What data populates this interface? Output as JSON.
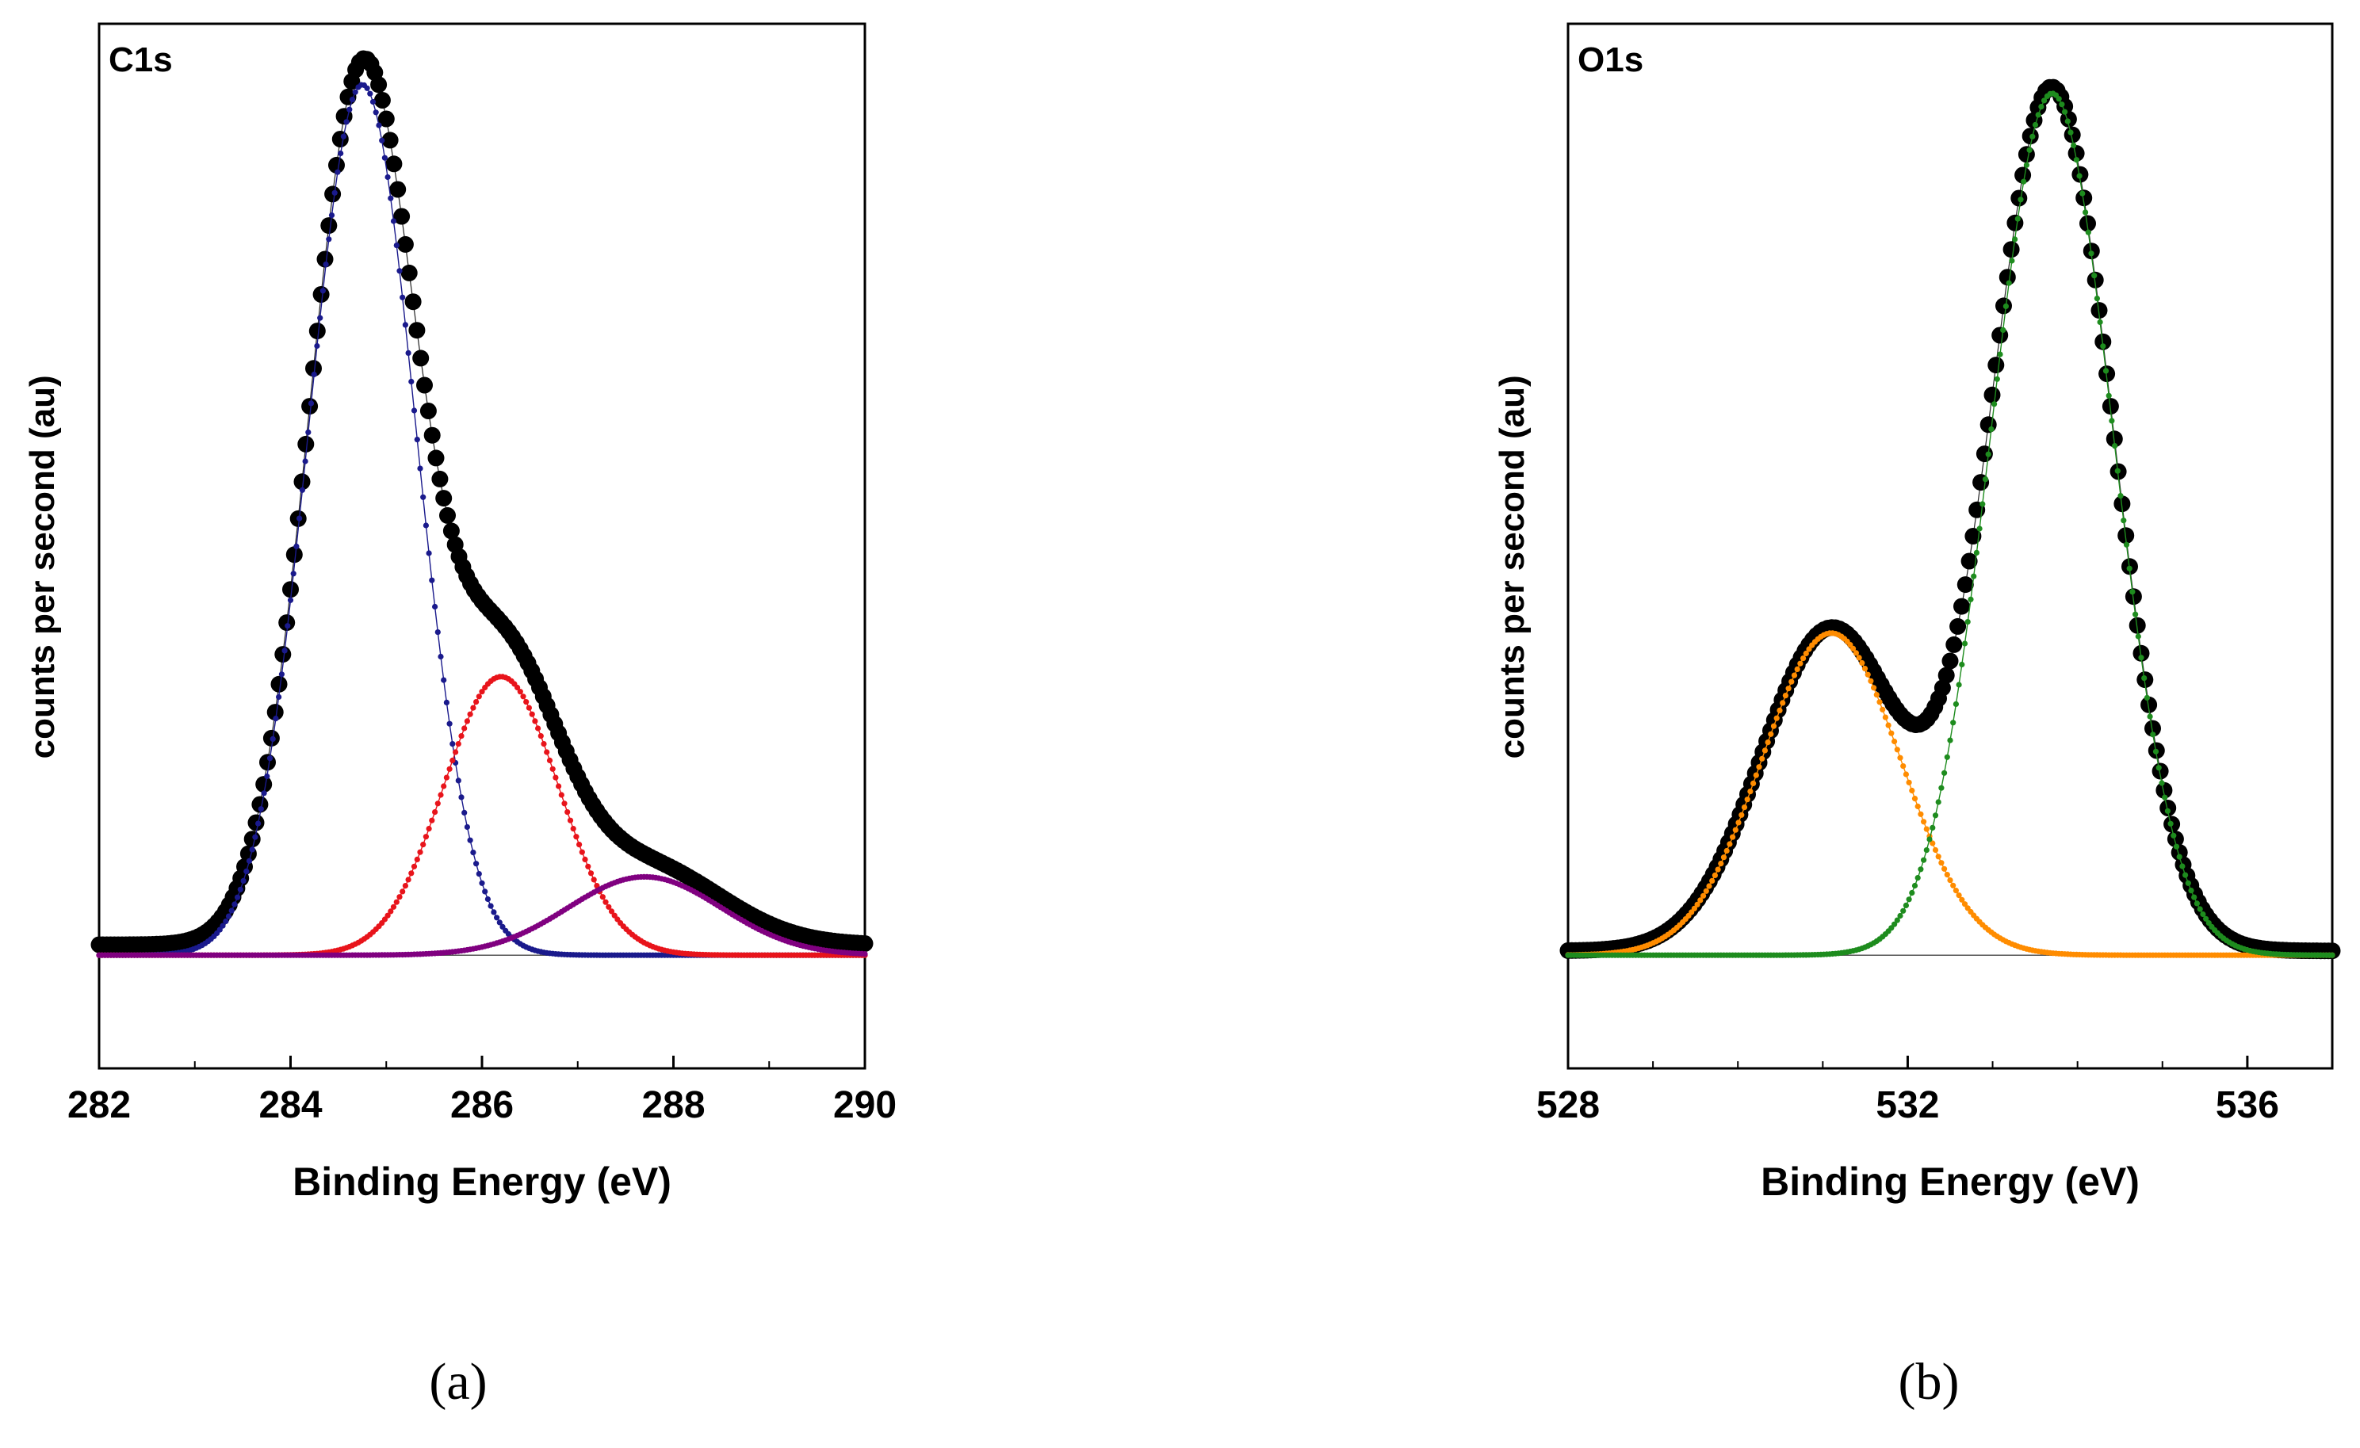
{
  "chart_data": [
    {
      "type": "scatter",
      "panel_label": "C1s",
      "caption": "(a)",
      "xlabel": "Binding Energy (eV)",
      "ylabel": "counts per second (au)",
      "xlim": [
        282,
        290
      ],
      "ylim": [
        -0.13,
        1.07
      ],
      "xticks": [
        "282",
        "284",
        "286",
        "288",
        "290"
      ],
      "x_minor_step": 1,
      "baseline": 0,
      "series": [
        {
          "role": "envelope",
          "color": "#000000",
          "marker": "large-dot",
          "peak_ids": [
            0,
            1,
            2
          ],
          "tail": 0.012
        },
        {
          "role": "component",
          "color": "#1a1a8c",
          "marker": "small-dot",
          "peak_ids": [
            0
          ]
        },
        {
          "role": "component",
          "color": "#e8141b",
          "marker": "small-dot",
          "peak_ids": [
            1
          ]
        },
        {
          "role": "component",
          "color": "#800080",
          "marker": "small-dot",
          "peak_ids": [
            2
          ]
        }
      ],
      "peaks": [
        {
          "center": 284.75,
          "height": 1.0,
          "sigma": 0.56
        },
        {
          "center": 286.2,
          "height": 0.32,
          "sigma": 0.6
        },
        {
          "center": 287.7,
          "height": 0.09,
          "sigma": 0.8
        }
      ]
    },
    {
      "type": "scatter",
      "panel_label": "O1s",
      "caption": "(b)",
      "xlabel": "Binding Energy (eV)",
      "ylabel": "counts per second (au)",
      "xlim": [
        528,
        537
      ],
      "ylim": [
        -0.13,
        1.07
      ],
      "xticks": [
        "528",
        "532",
        "536"
      ],
      "x_minor_step": 1,
      "baseline": 0,
      "series": [
        {
          "role": "envelope",
          "color": "#000000",
          "marker": "large-dot",
          "peak_ids": [
            0,
            1
          ],
          "tail": 0.005
        },
        {
          "role": "component",
          "color": "#ff8c00",
          "marker": "small-dot",
          "peak_ids": [
            0
          ]
        },
        {
          "role": "component",
          "color": "#1e8c1e",
          "marker": "small-dot",
          "peak_ids": [
            1
          ]
        }
      ],
      "peaks": [
        {
          "center": 531.1,
          "height": 0.37,
          "sigma": 0.82
        },
        {
          "center": 533.7,
          "height": 0.99,
          "sigma": 0.72
        }
      ]
    }
  ]
}
